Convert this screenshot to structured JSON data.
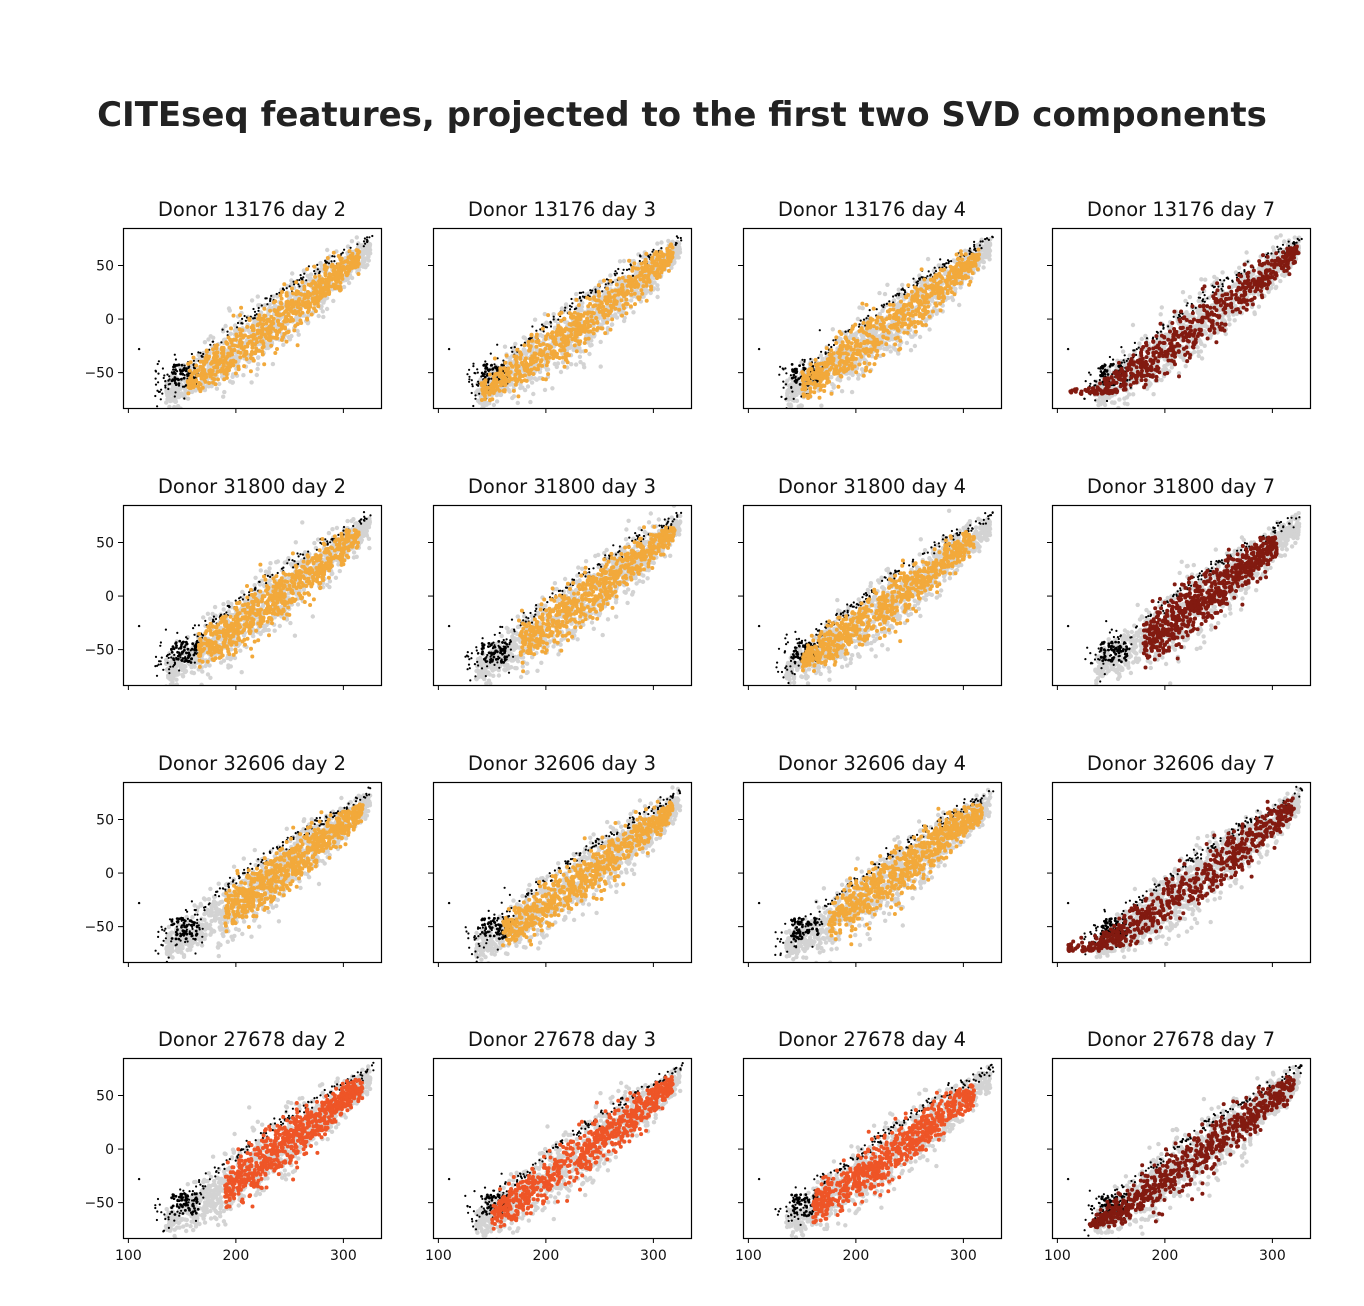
{
  "figure": {
    "title": "CITEseq features, projected to the first two SVD components"
  },
  "colors": {
    "background_cells": "#d3d3d3",
    "outlier_cells": "#000000",
    "day2_to_4_cmap_a": "#f2a93b",
    "day2_to_4_cmap_b": "#ee5527",
    "day7": "#821a10"
  },
  "chart_data": {
    "type": "scatter",
    "layout": "4x4 grid",
    "x_ticks": [
      100,
      200,
      300
    ],
    "y_ticks": [
      50,
      0,
      -50
    ],
    "xlim": [
      95,
      335
    ],
    "ylim": [
      -83,
      85
    ],
    "shared_axes": true,
    "grid": false,
    "legend": "none",
    "background_cloud": {
      "x": [
        130,
        325
      ],
      "y": [
        -75,
        78
      ],
      "color": "#d3d3d3"
    },
    "outlier_points": {
      "x": [
        110,
        115,
        120,
        125,
        128,
        130,
        133,
        135,
        138,
        140,
        145,
        148,
        150,
        152,
        155,
        158,
        160,
        162,
        165,
        170,
        172,
        175,
        180,
        185,
        190,
        195,
        200,
        205,
        210,
        215,
        220,
        225,
        230,
        235,
        240,
        245,
        250,
        255,
        260,
        265,
        270,
        275,
        280,
        285,
        290,
        295,
        300,
        305,
        310,
        315,
        318,
        320,
        322,
        325
      ],
      "y": [
        -28,
        -35,
        -40,
        -45,
        -55,
        -60,
        -62,
        -58,
        -50,
        -45,
        -40,
        -35,
        -30,
        -28,
        -25,
        -22,
        -20,
        -18,
        -15,
        -12,
        -10,
        -8,
        -5,
        -2,
        0,
        2,
        5,
        8,
        10,
        12,
        15,
        18,
        20,
        22,
        25,
        28,
        30,
        32,
        35,
        38,
        40,
        42,
        45,
        48,
        50,
        52,
        55,
        58,
        60,
        62,
        65,
        68,
        70,
        60
      ],
      "color": "#000000"
    },
    "panels": [
      {
        "title": "Donor 13176 day 2",
        "color": "#f2a93b",
        "x_range": [
          155,
          315
        ],
        "y_range": [
          -65,
          60
        ]
      },
      {
        "title": "Donor 13176 day 3",
        "color": "#f2a93b",
        "x_range": [
          140,
          318
        ],
        "y_range": [
          -75,
          65
        ]
      },
      {
        "title": "Donor 13176 day 4",
        "color": "#f2a93b",
        "x_range": [
          150,
          315
        ],
        "y_range": [
          -70,
          60
        ]
      },
      {
        "title": "Donor 13176 day 7",
        "color": "#821a10",
        "x_range": [
          110,
          325
        ],
        "y_range": [
          -65,
          75
        ]
      },
      {
        "title": "Donor 31800 day 2",
        "color": "#f2a93b",
        "x_range": [
          165,
          315
        ],
        "y_range": [
          -65,
          60
        ]
      },
      {
        "title": "Donor 31800 day 3",
        "color": "#f2a93b",
        "x_range": [
          175,
          320
        ],
        "y_range": [
          -72,
          60
        ]
      },
      {
        "title": "Donor 31800 day 4",
        "color": "#f2a93b",
        "x_range": [
          150,
          310
        ],
        "y_range": [
          -65,
          55
        ]
      },
      {
        "title": "Donor 31800 day 7",
        "color": "#821a10",
        "x_range": [
          180,
          305
        ],
        "y_range": [
          -65,
          50
        ]
      },
      {
        "title": "Donor 32606 day 2",
        "color": "#f2a93b",
        "x_range": [
          190,
          318
        ],
        "y_range": [
          -65,
          60
        ]
      },
      {
        "title": "Donor 32606 day 3",
        "color": "#f2a93b",
        "x_range": [
          160,
          318
        ],
        "y_range": [
          -72,
          62
        ]
      },
      {
        "title": "Donor 32606 day 4",
        "color": "#f2a93b",
        "x_range": [
          175,
          318
        ],
        "y_range": [
          -68,
          60
        ]
      },
      {
        "title": "Donor 32606 day 7",
        "color": "#821a10",
        "x_range": [
          110,
          320
        ],
        "y_range": [
          -68,
          65
        ]
      },
      {
        "title": "Donor 27678 day 2",
        "color": "#ee5527",
        "x_range": [
          190,
          318
        ],
        "y_range": [
          -65,
          60
        ]
      },
      {
        "title": "Donor 27678 day 3",
        "color": "#ee5527",
        "x_range": [
          150,
          318
        ],
        "y_range": [
          -72,
          65
        ]
      },
      {
        "title": "Donor 27678 day 4",
        "color": "#ee5527",
        "x_range": [
          160,
          310
        ],
        "y_range": [
          -68,
          55
        ]
      },
      {
        "title": "Donor 27678 day 7",
        "color": "#821a10",
        "x_range": [
          130,
          320
        ],
        "y_range": [
          -68,
          65
        ]
      }
    ]
  }
}
